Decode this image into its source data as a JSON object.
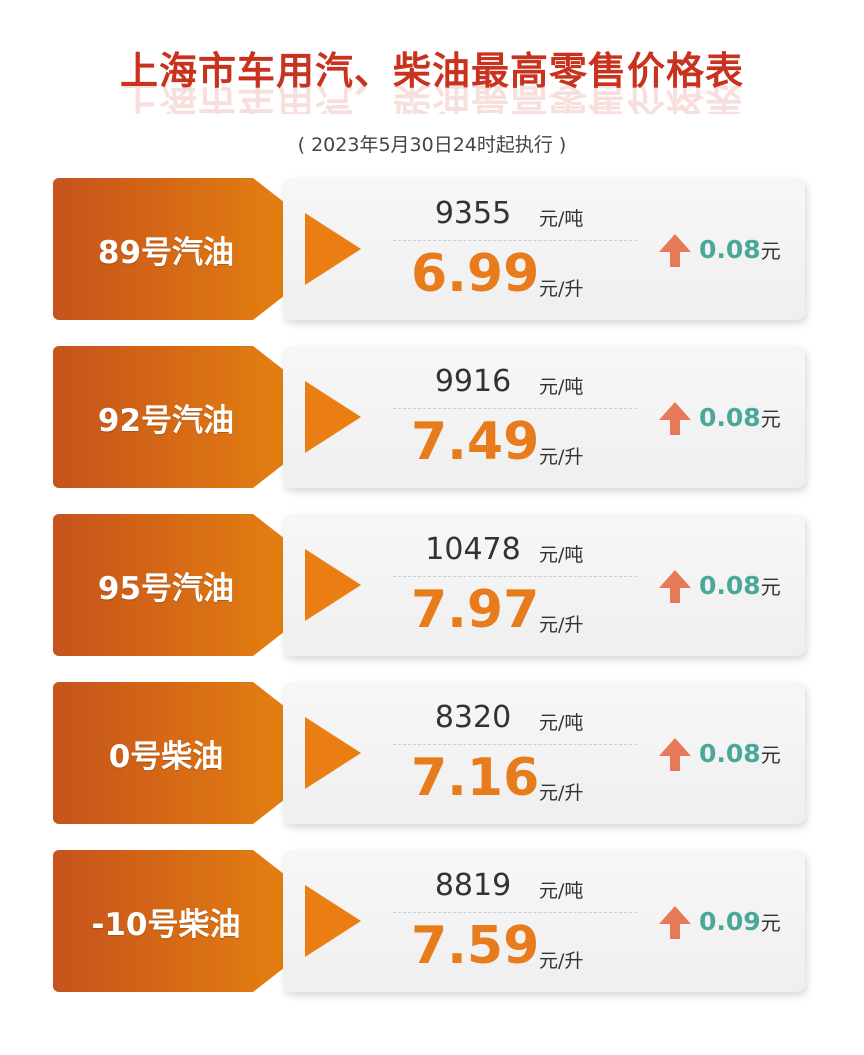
{
  "title": "上海市车用汽、柴油最高零售价格表",
  "subtitle": "( 2023年5月30日24时起执行 )",
  "colors": {
    "title": "#c8321e",
    "accent": "#e87b1c",
    "change": "#4aa89a",
    "up_arrow": "#e8785a"
  },
  "units": {
    "ton": "元/吨",
    "liter": "元/升",
    "yuan": "元"
  },
  "rows": [
    {
      "name": "89号汽油",
      "per_ton": "9355",
      "per_liter": "6.99",
      "change": "0.08",
      "direction": "up"
    },
    {
      "name": "92号汽油",
      "per_ton": "9916",
      "per_liter": "7.49",
      "change": "0.08",
      "direction": "up"
    },
    {
      "name": "95号汽油",
      "per_ton": "10478",
      "per_liter": "7.97",
      "change": "0.08",
      "direction": "up"
    },
    {
      "name": "0号柴油",
      "per_ton": "8320",
      "per_liter": "7.16",
      "change": "0.08",
      "direction": "up"
    },
    {
      "name": "-10号柴油",
      "per_ton": "8819",
      "per_liter": "7.59",
      "change": "0.09",
      "direction": "up"
    }
  ]
}
